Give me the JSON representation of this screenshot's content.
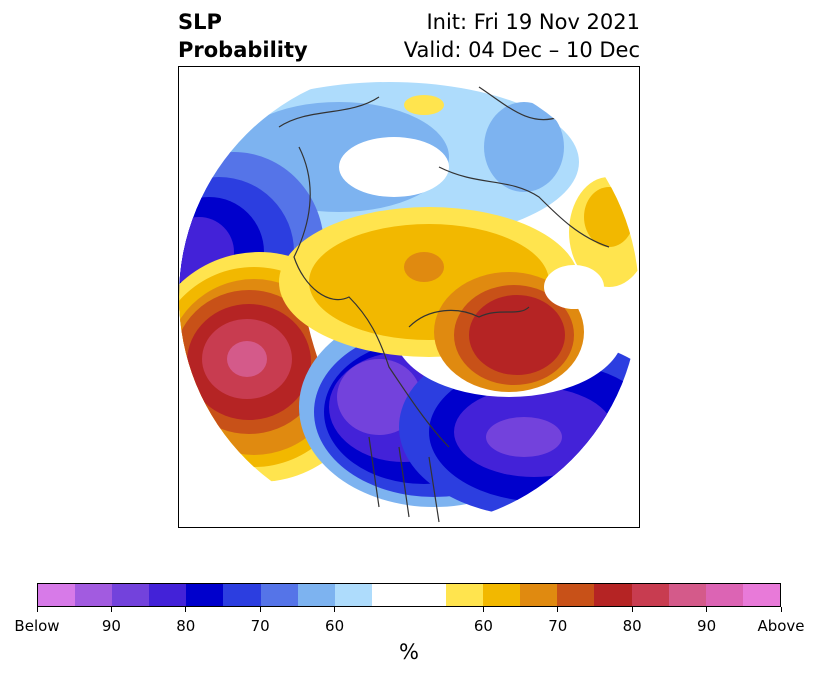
{
  "title": {
    "left_line1": "SLP",
    "left_line2": "Probability",
    "right_line1": "Init: Fri 19 Nov 2021",
    "right_line2": "Valid: 04 Dec – 10 Dec"
  },
  "colorbar": {
    "colors": [
      "#d77ae8",
      "#a25be0",
      "#7342dc",
      "#4322d8",
      "#0000cc",
      "#2c3ee0",
      "#5574e8",
      "#7db3f0",
      "#aedcfc",
      "#ffffff",
      "#ffffff",
      "#ffe44e",
      "#f2b800",
      "#e08a10",
      "#c85118",
      "#b52424",
      "#c83c50",
      "#d45a8a",
      "#dc64b4",
      "#e87ad9"
    ],
    "tick_labels": [
      "Below",
      "90",
      "80",
      "70",
      "60",
      "60",
      "70",
      "80",
      "90",
      "Above"
    ],
    "unit": "%"
  },
  "colors": {
    "ocean_blue_deep": "#0000cc",
    "purple": "#7342dc",
    "red": "#b52424",
    "orange": "#e08a10",
    "yellow": "#f2b800",
    "light_blue": "#aedcfc",
    "pink": "#d45a8a",
    "coast": "#333333"
  }
}
